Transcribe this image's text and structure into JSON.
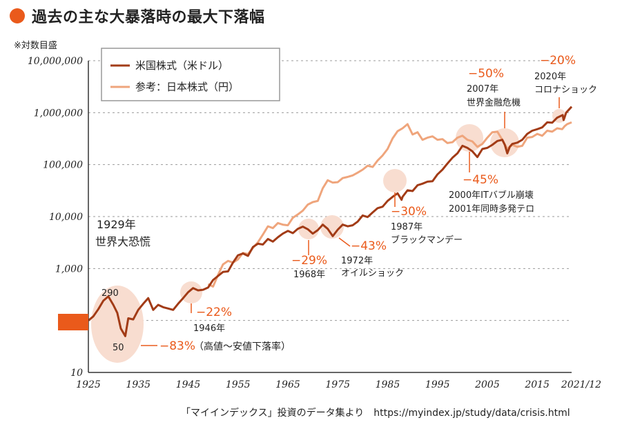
{
  "title": "過去の主な大暴落時の最大下落幅",
  "note": "※対数目盛",
  "source": "「マイインデックス」投資のデータ集より　https://myindex.jp/study/data/crisis.html",
  "colors": {
    "accent": "#ea5a1b",
    "us": "#a23b16",
    "jp": "#efa57c",
    "bubble": "#f8ddd0",
    "grid": "#999999"
  },
  "chart_data": {
    "type": "line",
    "yscale": "log",
    "ylim": [
      10,
      10000000
    ],
    "xlim": [
      1925,
      2021.9
    ],
    "y_ticks": [
      {
        "value": 10,
        "label": "10"
      },
      {
        "value": 100,
        "label": "100"
      },
      {
        "value": 1000,
        "label": "1,000"
      },
      {
        "value": 10000,
        "label": "10,000"
      },
      {
        "value": 100000,
        "label": "100,000"
      },
      {
        "value": 1000000,
        "label": "1,000,000"
      },
      {
        "value": 10000000,
        "label": "10,000,000"
      }
    ],
    "x_ticks": [
      {
        "value": 1925,
        "label": "1925"
      },
      {
        "value": 1935,
        "label": "1935"
      },
      {
        "value": 1945,
        "label": "1945"
      },
      {
        "value": 1955,
        "label": "1955"
      },
      {
        "value": 1965,
        "label": "1965"
      },
      {
        "value": 1975,
        "label": "1975"
      },
      {
        "value": 1985,
        "label": "1985"
      },
      {
        "value": 1995,
        "label": "1995"
      },
      {
        "value": 2005,
        "label": "2005"
      },
      {
        "value": 2015,
        "label": "2015"
      },
      {
        "value": 2021.9,
        "label": "2021/12"
      }
    ],
    "grid": true,
    "legend_position": "top-left",
    "series": [
      {
        "name": "米国株式（米ドル）",
        "color": "#a23b16",
        "points": [
          [
            1925,
            100
          ],
          [
            1926,
            120
          ],
          [
            1927,
            165
          ],
          [
            1928,
            240
          ],
          [
            1929,
            290
          ],
          [
            1930,
            200
          ],
          [
            1930.8,
            140
          ],
          [
            1931.5,
            70
          ],
          [
            1932.4,
            50
          ],
          [
            1933,
            110
          ],
          [
            1934,
            105
          ],
          [
            1935,
            160
          ],
          [
            1936,
            210
          ],
          [
            1937,
            270
          ],
          [
            1938,
            160
          ],
          [
            1939,
            200
          ],
          [
            1940,
            180
          ],
          [
            1941,
            170
          ],
          [
            1942,
            160
          ],
          [
            1943,
            210
          ],
          [
            1944,
            270
          ],
          [
            1945,
            350
          ],
          [
            1946,
            420
          ],
          [
            1947,
            380
          ],
          [
            1948,
            390
          ],
          [
            1949,
            430
          ],
          [
            1950,
            600
          ],
          [
            1951,
            720
          ],
          [
            1952,
            860
          ],
          [
            1953,
            880
          ],
          [
            1954,
            1300
          ],
          [
            1955,
            1800
          ],
          [
            1956,
            1950
          ],
          [
            1957,
            1750
          ],
          [
            1958,
            2600
          ],
          [
            1959,
            3000
          ],
          [
            1960,
            2900
          ],
          [
            1961,
            3700
          ],
          [
            1962,
            3300
          ],
          [
            1963,
            4000
          ],
          [
            1964,
            4700
          ],
          [
            1965,
            5300
          ],
          [
            1966,
            4800
          ],
          [
            1967,
            5800
          ],
          [
            1968,
            6400
          ],
          [
            1969,
            5700
          ],
          [
            1970,
            4700
          ],
          [
            1971,
            5500
          ],
          [
            1972,
            7000
          ],
          [
            1973,
            5800
          ],
          [
            1974,
            4200
          ],
          [
            1975,
            5600
          ],
          [
            1976,
            7000
          ],
          [
            1977,
            6500
          ],
          [
            1978,
            6800
          ],
          [
            1979,
            8000
          ],
          [
            1980,
            10500
          ],
          [
            1981,
            9800
          ],
          [
            1982,
            12000
          ],
          [
            1983,
            14500
          ],
          [
            1984,
            15500
          ],
          [
            1985,
            20000
          ],
          [
            1986,
            24000
          ],
          [
            1987,
            28000
          ],
          [
            1987.8,
            21000
          ],
          [
            1988,
            24000
          ],
          [
            1989,
            32000
          ],
          [
            1990,
            31000
          ],
          [
            1991,
            40000
          ],
          [
            1992,
            43000
          ],
          [
            1993,
            47000
          ],
          [
            1994,
            48000
          ],
          [
            1995,
            65000
          ],
          [
            1996,
            80000
          ],
          [
            1997,
            105000
          ],
          [
            1998,
            135000
          ],
          [
            1999,
            165000
          ],
          [
            2000,
            230000
          ],
          [
            2001,
            210000
          ],
          [
            2002,
            180000
          ],
          [
            2003,
            140000
          ],
          [
            2004,
            200000
          ],
          [
            2005,
            210000
          ],
          [
            2006,
            240000
          ],
          [
            2007,
            285000
          ],
          [
            2008,
            300000
          ],
          [
            2008.5,
            240000
          ],
          [
            2009,
            165000
          ],
          [
            2009.5,
            220000
          ],
          [
            2010,
            250000
          ],
          [
            2011,
            265000
          ],
          [
            2012,
            300000
          ],
          [
            2013,
            390000
          ],
          [
            2014,
            450000
          ],
          [
            2015,
            480000
          ],
          [
            2016,
            520000
          ],
          [
            2017,
            650000
          ],
          [
            2018,
            640000
          ],
          [
            2019,
            800000
          ],
          [
            2020.1,
            900000
          ],
          [
            2020.3,
            720000
          ],
          [
            2020.8,
            1000000
          ],
          [
            2021.9,
            1300000
          ]
        ]
      },
      {
        "name": "参考：日本株式（円）",
        "color": "#efa57c",
        "points": [
          [
            1949,
            500
          ],
          [
            1950,
            450
          ],
          [
            1951,
            750
          ],
          [
            1952,
            1200
          ],
          [
            1953,
            1400
          ],
          [
            1954,
            1300
          ],
          [
            1955,
            1500
          ],
          [
            1956,
            2000
          ],
          [
            1957,
            1900
          ],
          [
            1958,
            2500
          ],
          [
            1959,
            3200
          ],
          [
            1960,
            4500
          ],
          [
            1961,
            6500
          ],
          [
            1962,
            6000
          ],
          [
            1963,
            7500
          ],
          [
            1964,
            7000
          ],
          [
            1965,
            6800
          ],
          [
            1966,
            9500
          ],
          [
            1967,
            11000
          ],
          [
            1968,
            13000
          ],
          [
            1969,
            17000
          ],
          [
            1970,
            19000
          ],
          [
            1971,
            20000
          ],
          [
            1972,
            35000
          ],
          [
            1973,
            50000
          ],
          [
            1974,
            45000
          ],
          [
            1975,
            46000
          ],
          [
            1976,
            55000
          ],
          [
            1977,
            58000
          ],
          [
            1978,
            62000
          ],
          [
            1979,
            70000
          ],
          [
            1980,
            80000
          ],
          [
            1981,
            95000
          ],
          [
            1982,
            90000
          ],
          [
            1983,
            120000
          ],
          [
            1984,
            150000
          ],
          [
            1985,
            200000
          ],
          [
            1986,
            320000
          ],
          [
            1987,
            440000
          ],
          [
            1988,
            500000
          ],
          [
            1989,
            600000
          ],
          [
            1990,
            380000
          ],
          [
            1991,
            420000
          ],
          [
            1992,
            300000
          ],
          [
            1993,
            330000
          ],
          [
            1994,
            350000
          ],
          [
            1995,
            300000
          ],
          [
            1996,
            310000
          ],
          [
            1997,
            260000
          ],
          [
            1998,
            270000
          ],
          [
            1999,
            330000
          ],
          [
            2000,
            360000
          ],
          [
            2001,
            300000
          ],
          [
            2002,
            280000
          ],
          [
            2003,
            220000
          ],
          [
            2004,
            250000
          ],
          [
            2005,
            330000
          ],
          [
            2006,
            420000
          ],
          [
            2007,
            430000
          ],
          [
            2008,
            300000
          ],
          [
            2009,
            200000
          ],
          [
            2010,
            240000
          ],
          [
            2011,
            220000
          ],
          [
            2012,
            230000
          ],
          [
            2013,
            330000
          ],
          [
            2014,
            340000
          ],
          [
            2015,
            390000
          ],
          [
            2016,
            360000
          ],
          [
            2017,
            450000
          ],
          [
            2018,
            430000
          ],
          [
            2019,
            500000
          ],
          [
            2020,
            480000
          ],
          [
            2020.5,
            550000
          ],
          [
            2021,
            600000
          ],
          [
            2021.9,
            650000
          ]
        ]
      }
    ],
    "annotations": {
      "crash1929_year": "1929年",
      "crash1929_name": "世界大恐慌",
      "crash1929_peak": "290",
      "crash1929_trough": "50",
      "crash1929_drop": "−83%",
      "crash1929_note": "（高値〜安値下落率）",
      "crash1946_drop": "−22%",
      "crash1946_year": "1946年",
      "crash1968_drop": "−29%",
      "crash1968_year": "1968年",
      "crash1972_drop": "−43%",
      "crash1972_year": "1972年",
      "crash1972_name": "オイルショック",
      "crash1987_drop": "−30%",
      "crash1987_year": "1987年",
      "crash1987_name": "ブラックマンデー",
      "crash2000_drop": "−45%",
      "crash2000_line1": "2000年ITバブル崩壊",
      "crash2000_line2": "2001年同時多発テロ",
      "crash2007_drop": "−50%",
      "crash2007_year": "2007年",
      "crash2007_name": "世界金融危機",
      "crash2020_drop": "−20%",
      "crash2020_year": "2020年",
      "crash2020_name": "コロナショック"
    }
  }
}
